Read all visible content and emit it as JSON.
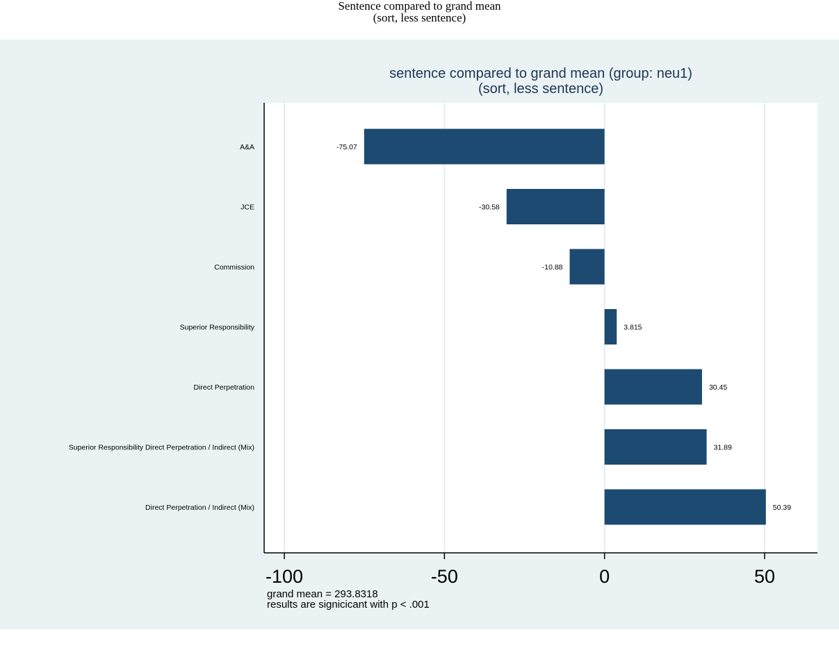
{
  "page": {
    "title_line1": "Sentence compared to grand mean",
    "title_line2": "(sort, less sentence)"
  },
  "chart_data": {
    "type": "bar",
    "orientation": "horizontal",
    "title": "sentence compared to grand mean (group: neu1)",
    "subtitle": "(sort, less sentence)",
    "categories": [
      "A&A",
      "JCE",
      "Commission",
      "Superior Responsibility",
      "Direct Perpetration",
      "Superior Responsibility Direct Perpetration / Indirect (Mix)",
      "Direct Perpetration / Indirect (Mix)"
    ],
    "values": [
      -75.07,
      -30.58,
      -10.88,
      3.815,
      30.45,
      31.89,
      50.39
    ],
    "value_labels": [
      "-75.07",
      "-30.58",
      "-10.88",
      "3.815",
      "30.45",
      "31.89",
      "50.39"
    ],
    "xlim": [
      -100,
      50
    ],
    "xticks": [
      -100,
      -50,
      0,
      50
    ],
    "xtick_labels": [
      "-100",
      "-50",
      "0",
      "50"
    ],
    "grid": true,
    "bar_color": "#1c4a70",
    "panel_color": "#eaf2f3",
    "title_color": "#1d3557",
    "notes": [
      "grand mean = 293.8318",
      "results are signicicant with p < .001"
    ]
  }
}
